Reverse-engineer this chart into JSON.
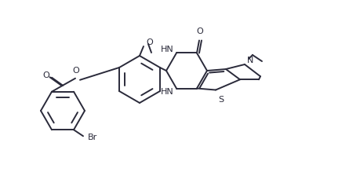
{
  "bg": "#ffffff",
  "lc": "#2a2a3a",
  "lw": 1.4,
  "fs": 8.0,
  "figw": 4.59,
  "figh": 2.19,
  "dpi": 100,
  "methoxy_label": "O",
  "methoxy_ch3": "O",
  "ester_O_label": "O",
  "carbonyl_O_label": "O",
  "NH_top": "HN",
  "NH_bot": "HN",
  "keto_O": "O",
  "S_label": "S",
  "N_label": "N",
  "Br_label": "Br",
  "methyl_label": "/"
}
